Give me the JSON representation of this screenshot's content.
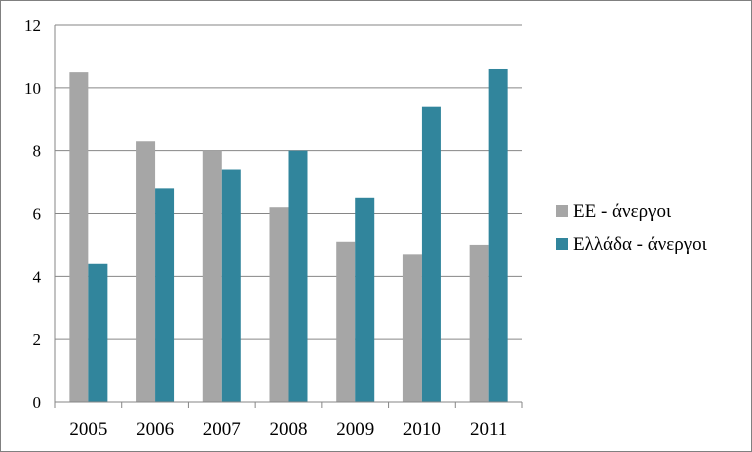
{
  "chart_data": {
    "type": "bar",
    "categories": [
      "2005",
      "2006",
      "2007",
      "2008",
      "2009",
      "2010",
      "2011"
    ],
    "series": [
      {
        "name": "ΕΕ - άνεργοι",
        "color": "#a6a6a6",
        "values": [
          10.5,
          8.3,
          8.0,
          6.2,
          5.1,
          4.7,
          5.0
        ]
      },
      {
        "name": "Ελλάδα - άνεργοι",
        "color": "#31859c",
        "values": [
          4.4,
          6.8,
          7.4,
          8.0,
          6.5,
          9.4,
          10.6
        ]
      }
    ],
    "ylim": [
      0,
      12
    ],
    "yticks": [
      "0",
      "2",
      "4",
      "6",
      "8",
      "10",
      "12"
    ],
    "grid": true,
    "legend_position": "right"
  }
}
